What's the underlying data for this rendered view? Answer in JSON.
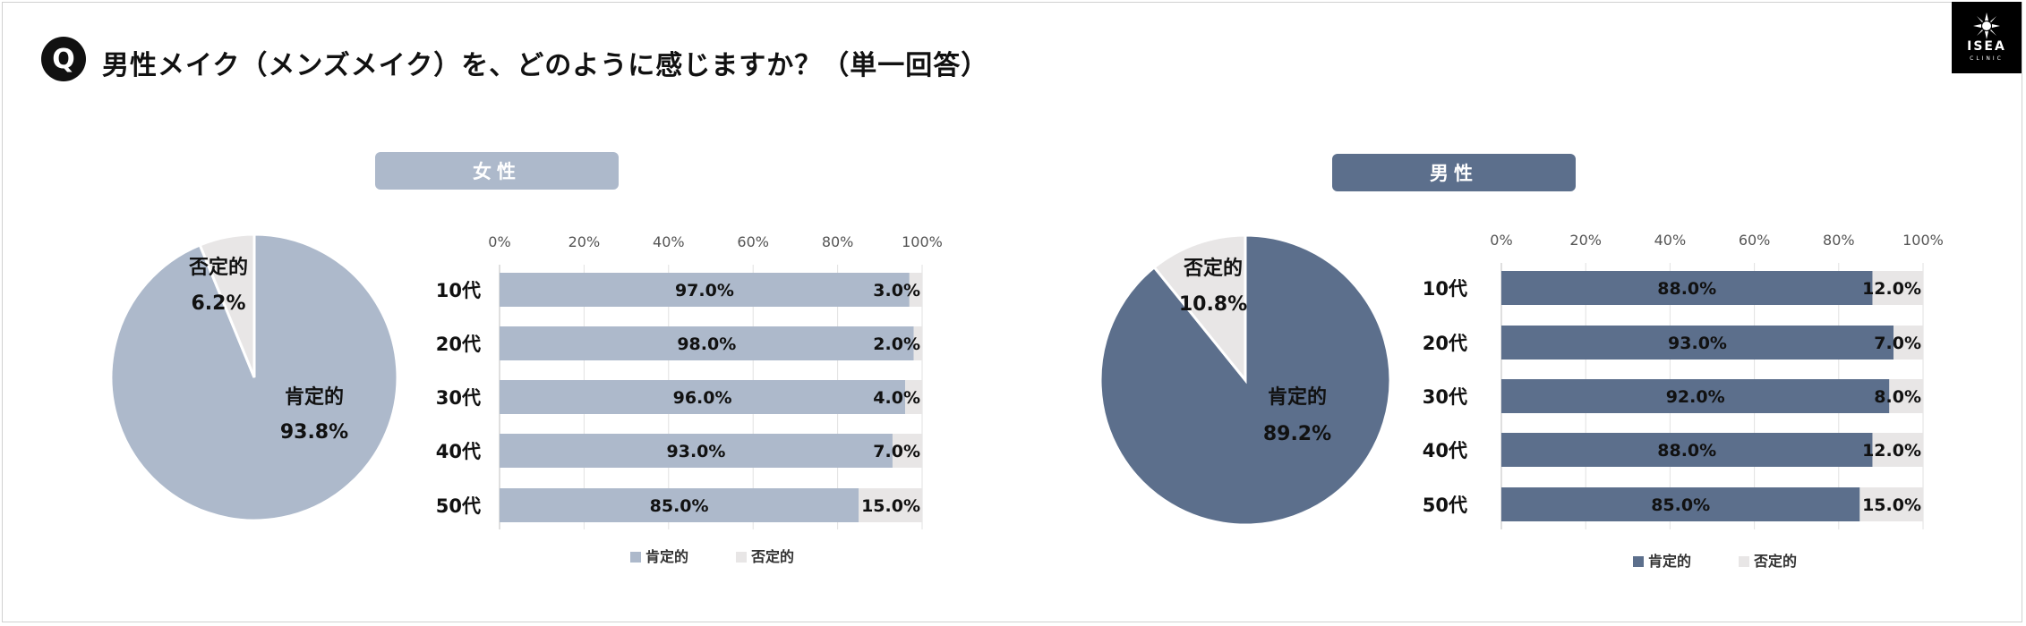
{
  "question": {
    "badge": "Q",
    "title": "男性メイク（メンズメイク）を、どのように感じますか？（単一回答）"
  },
  "logo": {
    "brand": "ISEA",
    "sub": "CLINIC"
  },
  "colors": {
    "female": "#adb9cb",
    "male": "#5c6f8c",
    "negative": "#e8e6e6"
  },
  "chart_data": [
    {
      "type": "pie",
      "panel": "女性",
      "slices": [
        {
          "label": "肯定的",
          "value": 93.8,
          "display": "93.8%"
        },
        {
          "label": "否定的",
          "value": 6.2,
          "display": "6.2%"
        }
      ]
    },
    {
      "type": "bar",
      "orientation": "horizontal-stacked",
      "panel": "女性",
      "categories": [
        "10代",
        "20代",
        "30代",
        "40代",
        "50代"
      ],
      "series": [
        {
          "name": "肯定的",
          "values": [
            97.0,
            98.0,
            96.0,
            93.0,
            85.0
          ],
          "labels": [
            "97.0%",
            "98.0%",
            "96.0%",
            "93.0%",
            "85.0%"
          ]
        },
        {
          "name": "否定的",
          "values": [
            3.0,
            2.0,
            4.0,
            7.0,
            15.0
          ],
          "labels": [
            "3.0%",
            "2.0%",
            "4.0%",
            "7.0%",
            "15.0%"
          ]
        }
      ],
      "xticks": [
        "0%",
        "20%",
        "40%",
        "60%",
        "80%",
        "100%"
      ],
      "xlim": [
        0,
        100
      ],
      "grid": true,
      "legend": "bottom"
    },
    {
      "type": "pie",
      "panel": "男性",
      "slices": [
        {
          "label": "肯定的",
          "value": 89.2,
          "display": "89.2%"
        },
        {
          "label": "否定的",
          "value": 10.8,
          "display": "10.8%"
        }
      ]
    },
    {
      "type": "bar",
      "orientation": "horizontal-stacked",
      "panel": "男性",
      "categories": [
        "10代",
        "20代",
        "30代",
        "40代",
        "50代"
      ],
      "series": [
        {
          "name": "肯定的",
          "values": [
            88.0,
            93.0,
            92.0,
            88.0,
            85.0
          ],
          "labels": [
            "88.0%",
            "93.0%",
            "92.0%",
            "88.0%",
            "85.0%"
          ]
        },
        {
          "name": "否定的",
          "values": [
            12.0,
            7.0,
            8.0,
            12.0,
            15.0
          ],
          "labels": [
            "12.0%",
            "7.0%",
            "8.0%",
            "12.0%",
            "15.0%"
          ]
        }
      ],
      "xticks": [
        "0%",
        "20%",
        "40%",
        "60%",
        "80%",
        "100%"
      ],
      "xlim": [
        0,
        100
      ],
      "grid": true,
      "legend": "bottom"
    }
  ]
}
